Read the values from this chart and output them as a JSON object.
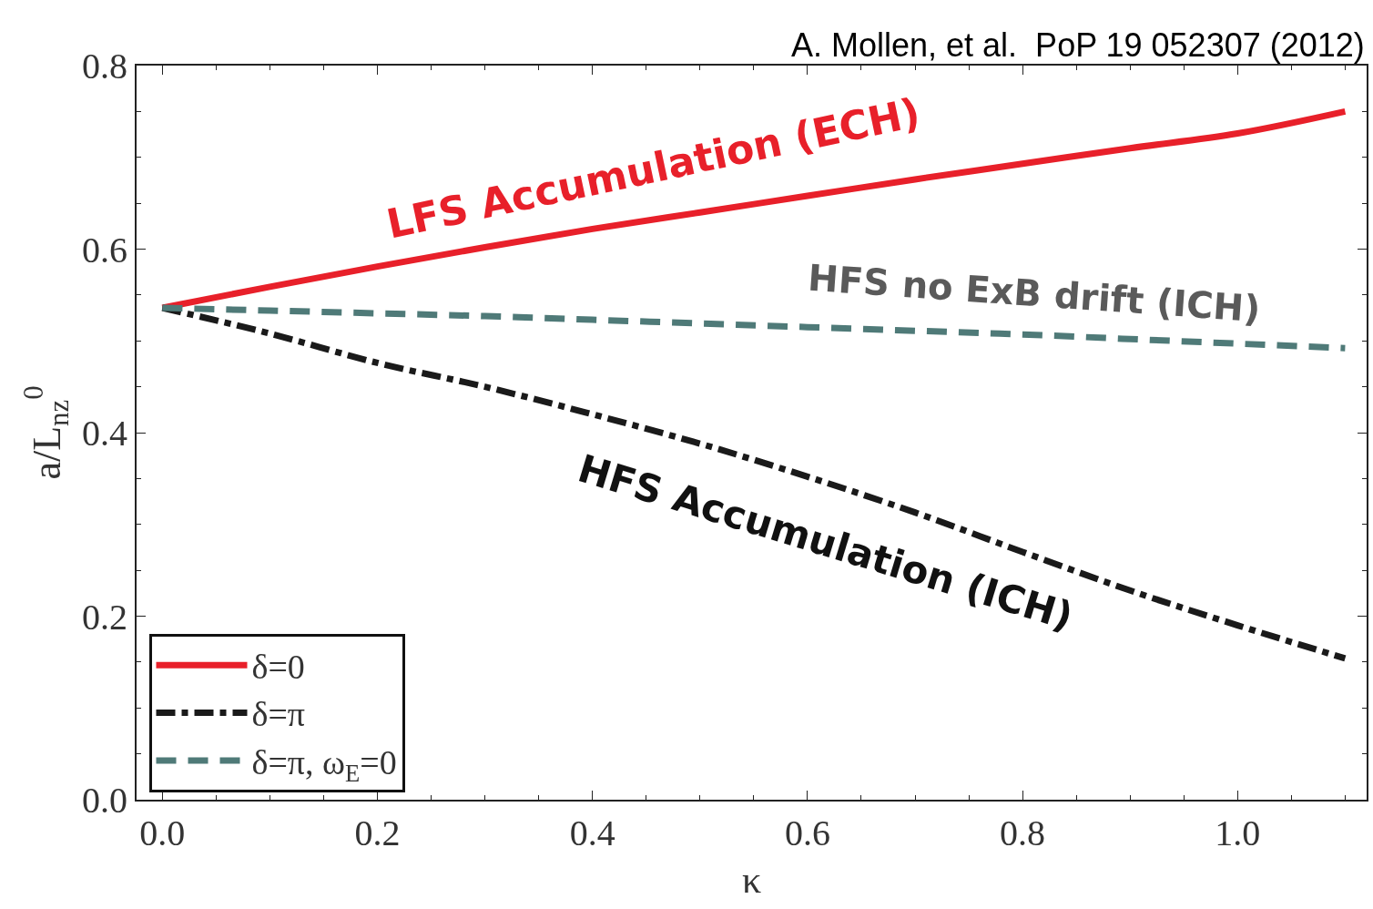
{
  "chart_data": {
    "type": "line",
    "xlabel": "κ",
    "ylabel": "a/L$_{nz}$$^{0}$",
    "x": [
      0,
      0.1,
      0.2,
      0.3,
      0.4,
      0.5,
      0.6,
      0.7,
      0.8,
      0.9,
      1.0,
      1.1
    ],
    "series": [
      {
        "name": "δ=0",
        "color": "#e8202a",
        "line_style": "solid",
        "values": [
          0.536,
          0.559,
          0.581,
          0.602,
          0.622,
          0.64,
          0.658,
          0.676,
          0.693,
          0.71,
          0.726,
          0.75
        ]
      },
      {
        "name": "δ=π",
        "color": "#1a1a1a",
        "line_style": "dashdot",
        "values": [
          0.536,
          0.508,
          0.476,
          0.45,
          0.42,
          0.388,
          0.352,
          0.313,
          0.27,
          0.228,
          0.19,
          0.154
        ]
      },
      {
        "name": "δ=π, ω$_{E}$=0",
        "color": "#4f7a78",
        "line_style": "dashed",
        "values": [
          0.536,
          0.533,
          0.53,
          0.527,
          0.523,
          0.519,
          0.515,
          0.511,
          0.507,
          0.502,
          0.497,
          0.492
        ]
      }
    ],
    "xlim": [
      -0.024,
      1.12
    ],
    "ylim": [
      0.0,
      0.8
    ],
    "xticks": [
      {
        "value": 0,
        "label": "0.0"
      },
      0.2,
      0.4,
      0.6,
      0.8,
      {
        "value": 1,
        "label": "1.0"
      }
    ],
    "yticks": [
      {
        "value": 0,
        "label": "0.0"
      },
      0.2,
      0.4,
      0.6,
      0.8
    ],
    "legend": "bottom left",
    "marker": "none",
    "annotations": [
      "A. Mollen, et al.  PoP 19 052307 (2012)",
      "LFS Accumulation (ECH)",
      "HFS no ExB drift (ICH)",
      "HFS Accumulation (ICH)"
    ]
  }
}
